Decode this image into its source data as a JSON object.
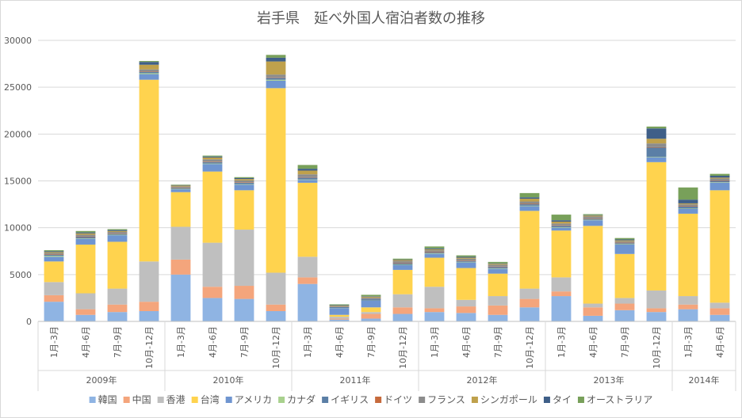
{
  "chart_data": {
    "type": "bar",
    "stacked": true,
    "title": "岩手県　延べ外国人宿泊者数の推移",
    "ylim": [
      0,
      30000
    ],
    "yticks": [
      0,
      5000,
      10000,
      15000,
      20000,
      25000,
      30000
    ],
    "grid": true,
    "legend_position": "bottom",
    "categories": [
      "1月-3月",
      "4月-6月",
      "7月-9月",
      "10月-12月",
      "1月-3月",
      "4月-6月",
      "7月-9月",
      "10月-12月",
      "1月-3月",
      "4月-6月",
      "7月-9月",
      "10月-12月",
      "1月-3月",
      "4月-6月",
      "7月-9月",
      "10月-12月",
      "1月-3月",
      "4月-6月",
      "7月-9月",
      "10月-12月",
      "1月-3月",
      "4月-6月"
    ],
    "groups": [
      {
        "label": "2009年",
        "count": 4
      },
      {
        "label": "2010年",
        "count": 4
      },
      {
        "label": "2011年",
        "count": 4
      },
      {
        "label": "2012年",
        "count": 4
      },
      {
        "label": "2013年",
        "count": 4
      },
      {
        "label": "2014年",
        "count": 2
      }
    ],
    "series": [
      {
        "name": "韓国",
        "color": "#8fb4e3",
        "values": [
          2100,
          700,
          1000,
          1100,
          5000,
          2500,
          2400,
          1100,
          4000,
          200,
          300,
          800,
          1000,
          900,
          700,
          1500,
          2700,
          600,
          1200,
          1000,
          1300,
          700
        ]
      },
      {
        "name": "中国",
        "color": "#f4a57c",
        "values": [
          700,
          600,
          800,
          1000,
          1600,
          1200,
          1400,
          700,
          700,
          100,
          500,
          700,
          400,
          700,
          1000,
          900,
          500,
          900,
          700,
          400,
          500,
          700
        ]
      },
      {
        "name": "香港",
        "color": "#bfbfbf",
        "values": [
          1400,
          1700,
          1700,
          4300,
          3500,
          4700,
          6000,
          3400,
          2200,
          200,
          200,
          1400,
          2300,
          700,
          1000,
          1100,
          1500,
          400,
          600,
          1900,
          900,
          600
        ]
      },
      {
        "name": "台湾",
        "color": "#ffd34e",
        "values": [
          2200,
          5200,
          5000,
          19400,
          3700,
          7600,
          4200,
          19700,
          7900,
          200,
          500,
          2600,
          3100,
          3400,
          2400,
          8300,
          5000,
          8300,
          4700,
          13700,
          8800,
          12000
        ]
      },
      {
        "name": "アメリカ",
        "color": "#6f95d0",
        "values": [
          500,
          600,
          700,
          600,
          300,
          800,
          600,
          800,
          300,
          700,
          700,
          500,
          400,
          600,
          500,
          500,
          300,
          600,
          1000,
          500,
          500,
          800
        ]
      },
      {
        "name": "カナダ",
        "color": "#a9d18e",
        "values": [
          100,
          50,
          50,
          100,
          50,
          50,
          50,
          100,
          50,
          20,
          20,
          50,
          50,
          50,
          50,
          50,
          50,
          50,
          50,
          50,
          50,
          50
        ]
      },
      {
        "name": "イギリス",
        "color": "#5b7fa6",
        "values": [
          100,
          150,
          100,
          150,
          100,
          150,
          150,
          200,
          200,
          100,
          150,
          150,
          100,
          100,
          150,
          150,
          150,
          100,
          100,
          1000,
          200,
          150
        ]
      },
      {
        "name": "ドイツ",
        "color": "#c66a3c",
        "values": [
          50,
          50,
          50,
          50,
          50,
          50,
          50,
          50,
          50,
          20,
          20,
          50,
          50,
          50,
          50,
          50,
          50,
          50,
          50,
          50,
          50,
          50
        ]
      },
      {
        "name": "フランス",
        "color": "#8c8c8c",
        "values": [
          150,
          200,
          150,
          200,
          100,
          250,
          200,
          300,
          300,
          100,
          150,
          200,
          200,
          200,
          200,
          250,
          200,
          200,
          150,
          400,
          200,
          200
        ]
      },
      {
        "name": "シンガポール",
        "color": "#bfa14c",
        "values": [
          100,
          150,
          100,
          500,
          100,
          200,
          150,
          1400,
          400,
          50,
          100,
          100,
          100,
          100,
          100,
          300,
          200,
          100,
          100,
          500,
          100,
          100
        ]
      },
      {
        "name": "タイ",
        "color": "#3f5f88",
        "values": [
          100,
          100,
          100,
          300,
          50,
          100,
          100,
          400,
          200,
          50,
          50,
          50,
          100,
          100,
          50,
          150,
          150,
          50,
          100,
          1100,
          400,
          200
        ]
      },
      {
        "name": "オーストラリア",
        "color": "#78a05a",
        "values": [
          100,
          150,
          100,
          100,
          50,
          100,
          100,
          300,
          400,
          80,
          150,
          100,
          200,
          150,
          150,
          450,
          600,
          100,
          150,
          200,
          1300,
          200
        ]
      }
    ]
  }
}
